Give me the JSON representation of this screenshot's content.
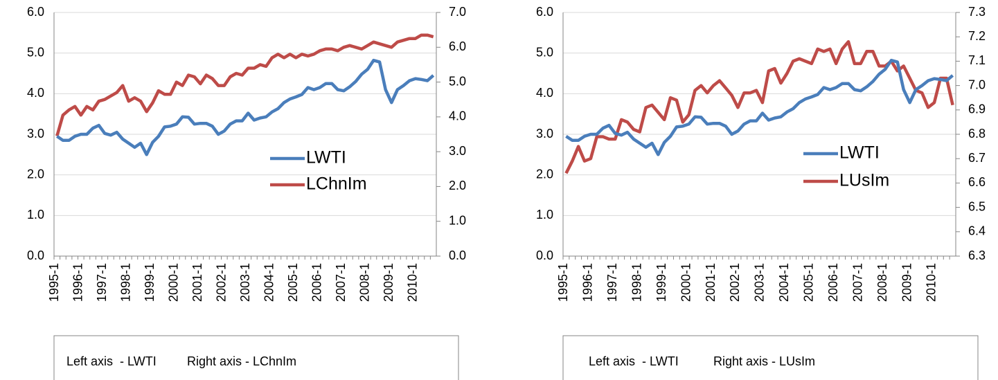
{
  "chart_data": [
    {
      "type": "line",
      "categories": [
        "1995-1",
        null,
        null,
        null,
        "1996-1",
        null,
        null,
        null,
        "1997-1",
        null,
        null,
        null,
        "1998-1",
        null,
        null,
        null,
        "1999-1",
        null,
        null,
        null,
        "2000-1",
        null,
        null,
        null,
        "2001-1",
        null,
        null,
        null,
        "2002-1",
        null,
        null,
        null,
        "2003-1",
        null,
        null,
        null,
        "2004-1",
        null,
        null,
        null,
        "2005-1",
        null,
        null,
        null,
        "2006-1",
        null,
        null,
        null,
        "2007-1",
        null,
        null,
        null,
        "2008-1",
        null,
        null,
        null,
        "2009-1",
        null,
        null,
        null,
        "2010-1",
        null,
        null,
        null
      ],
      "series": [
        {
          "name": "LWTI",
          "color": "#4a7ebb",
          "axis": "y",
          "values": [
            2.95,
            2.85,
            2.85,
            2.95,
            3.0,
            3.0,
            3.15,
            3.22,
            3.02,
            2.98,
            3.05,
            2.88,
            2.78,
            2.68,
            2.78,
            2.5,
            2.8,
            2.95,
            3.18,
            3.2,
            3.25,
            3.43,
            3.42,
            3.25,
            3.27,
            3.27,
            3.2,
            3.0,
            3.08,
            3.25,
            3.33,
            3.33,
            3.52,
            3.35,
            3.4,
            3.43,
            3.55,
            3.63,
            3.78,
            3.87,
            3.92,
            3.98,
            4.15,
            4.1,
            4.15,
            4.25,
            4.25,
            4.1,
            4.07,
            4.17,
            4.3,
            4.48,
            4.6,
            4.82,
            4.78,
            4.1,
            3.78,
            4.1,
            4.2,
            4.32,
            4.37,
            4.35,
            4.32,
            4.45
          ]
        },
        {
          "name": "LChnIm",
          "color": "#be4b48",
          "axis": "y2",
          "values": [
            3.45,
            4.05,
            4.2,
            4.3,
            4.05,
            4.3,
            4.2,
            4.45,
            4.5,
            4.6,
            4.7,
            4.9,
            4.45,
            4.55,
            4.45,
            4.15,
            4.4,
            4.75,
            4.65,
            4.65,
            5.0,
            4.9,
            5.2,
            5.15,
            4.95,
            5.2,
            5.1,
            4.9,
            4.9,
            5.15,
            5.25,
            5.2,
            5.4,
            5.4,
            5.5,
            5.45,
            5.7,
            5.8,
            5.7,
            5.8,
            5.7,
            5.8,
            5.75,
            5.8,
            5.9,
            5.95,
            5.95,
            5.9,
            6.0,
            6.05,
            6.0,
            5.95,
            6.05,
            6.15,
            6.1,
            6.05,
            6.0,
            6.15,
            6.2,
            6.25,
            6.25,
            6.35,
            6.35,
            6.3
          ]
        }
      ],
      "ylim": [
        0,
        6
      ],
      "yticks": [
        {
          "value": 0,
          "label": "0.0"
        },
        {
          "value": 1,
          "label": "1.0"
        },
        {
          "value": 2,
          "label": "2.0"
        },
        {
          "value": 3,
          "label": "3.0"
        },
        {
          "value": 4,
          "label": "4.0"
        },
        {
          "value": 5,
          "label": "5.0"
        },
        {
          "value": 6,
          "label": "6.0"
        }
      ],
      "y2lim": [
        0,
        7
      ],
      "y2ticks": [
        {
          "value": 0,
          "label": "0.0"
        },
        {
          "value": 1,
          "label": "1.0"
        },
        {
          "value": 2,
          "label": "2.0"
        },
        {
          "value": 3,
          "label": "3.0"
        },
        {
          "value": 4,
          "label": "4.0"
        },
        {
          "value": 5,
          "label": "5.0"
        },
        {
          "value": 6,
          "label": "6.0"
        },
        {
          "value": 7,
          "label": "7.0"
        }
      ],
      "grid": true,
      "legend": "center-right",
      "annotations": [
        "Left axis  - LWTI",
        "Right axis - LChnIm"
      ]
    },
    {
      "type": "line",
      "categories": [
        "1995-1",
        null,
        null,
        null,
        "1996-1",
        null,
        null,
        null,
        "1997-1",
        null,
        null,
        null,
        "1998-1",
        null,
        null,
        null,
        "1999-1",
        null,
        null,
        null,
        "2000-1",
        null,
        null,
        null,
        "2001-1",
        null,
        null,
        null,
        "2002-1",
        null,
        null,
        null,
        "2003-1",
        null,
        null,
        null,
        "2004-1",
        null,
        null,
        null,
        "2005-1",
        null,
        null,
        null,
        "2006-1",
        null,
        null,
        null,
        "2007-1",
        null,
        null,
        null,
        "2008-1",
        null,
        null,
        null,
        "2009-1",
        null,
        null,
        null,
        "2010-1",
        null,
        null,
        null
      ],
      "series": [
        {
          "name": "LWTI",
          "color": "#4a7ebb",
          "axis": "y",
          "values": [
            2.95,
            2.85,
            2.85,
            2.95,
            3.0,
            3.0,
            3.15,
            3.22,
            3.02,
            2.98,
            3.05,
            2.88,
            2.78,
            2.68,
            2.78,
            2.5,
            2.8,
            2.95,
            3.18,
            3.2,
            3.25,
            3.43,
            3.42,
            3.25,
            3.27,
            3.27,
            3.2,
            3.0,
            3.08,
            3.25,
            3.33,
            3.33,
            3.52,
            3.35,
            3.4,
            3.43,
            3.55,
            3.63,
            3.78,
            3.87,
            3.92,
            3.98,
            4.15,
            4.1,
            4.15,
            4.25,
            4.25,
            4.1,
            4.07,
            4.17,
            4.3,
            4.48,
            4.6,
            4.82,
            4.78,
            4.1,
            3.78,
            4.1,
            4.2,
            4.32,
            4.37,
            4.35,
            4.32,
            4.45
          ]
        },
        {
          "name": "LUsIm",
          "color": "#be4b48",
          "axis": "y2",
          "values": [
            6.64,
            6.69,
            6.75,
            6.69,
            6.7,
            6.79,
            6.79,
            6.78,
            6.78,
            6.86,
            6.85,
            6.82,
            6.81,
            6.91,
            6.92,
            6.89,
            6.86,
            6.95,
            6.94,
            6.85,
            6.88,
            6.98,
            7.0,
            6.97,
            7.0,
            7.02,
            6.99,
            6.96,
            6.91,
            6.97,
            6.97,
            6.98,
            6.93,
            7.06,
            7.07,
            7.01,
            7.05,
            7.1,
            7.11,
            7.1,
            7.09,
            7.15,
            7.14,
            7.15,
            7.09,
            7.15,
            7.18,
            7.09,
            7.09,
            7.14,
            7.14,
            7.08,
            7.08,
            7.1,
            7.06,
            7.08,
            7.03,
            6.98,
            6.97,
            6.91,
            6.93,
            7.03,
            7.03,
            6.92
          ]
        }
      ],
      "ylim": [
        0,
        6
      ],
      "yticks": [
        {
          "value": 0,
          "label": "0.0"
        },
        {
          "value": 1,
          "label": "1.0"
        },
        {
          "value": 2,
          "label": "2.0"
        },
        {
          "value": 3,
          "label": "3.0"
        },
        {
          "value": 4,
          "label": "4.0"
        },
        {
          "value": 5,
          "label": "5.0"
        },
        {
          "value": 6,
          "label": "6.0"
        }
      ],
      "y2lim": [
        6.3,
        7.3
      ],
      "y2ticks": [
        6.3,
        6.4,
        6.5,
        6.6,
        6.7,
        6.8,
        6.9,
        {
          "value": 7,
          "label": "7.0"
        },
        7.1,
        7.2,
        7.3
      ],
      "grid": true,
      "legend": "center-right",
      "annotations": [
        "Left axis  - LWTI",
        "Right axis - LUsIm"
      ]
    }
  ]
}
